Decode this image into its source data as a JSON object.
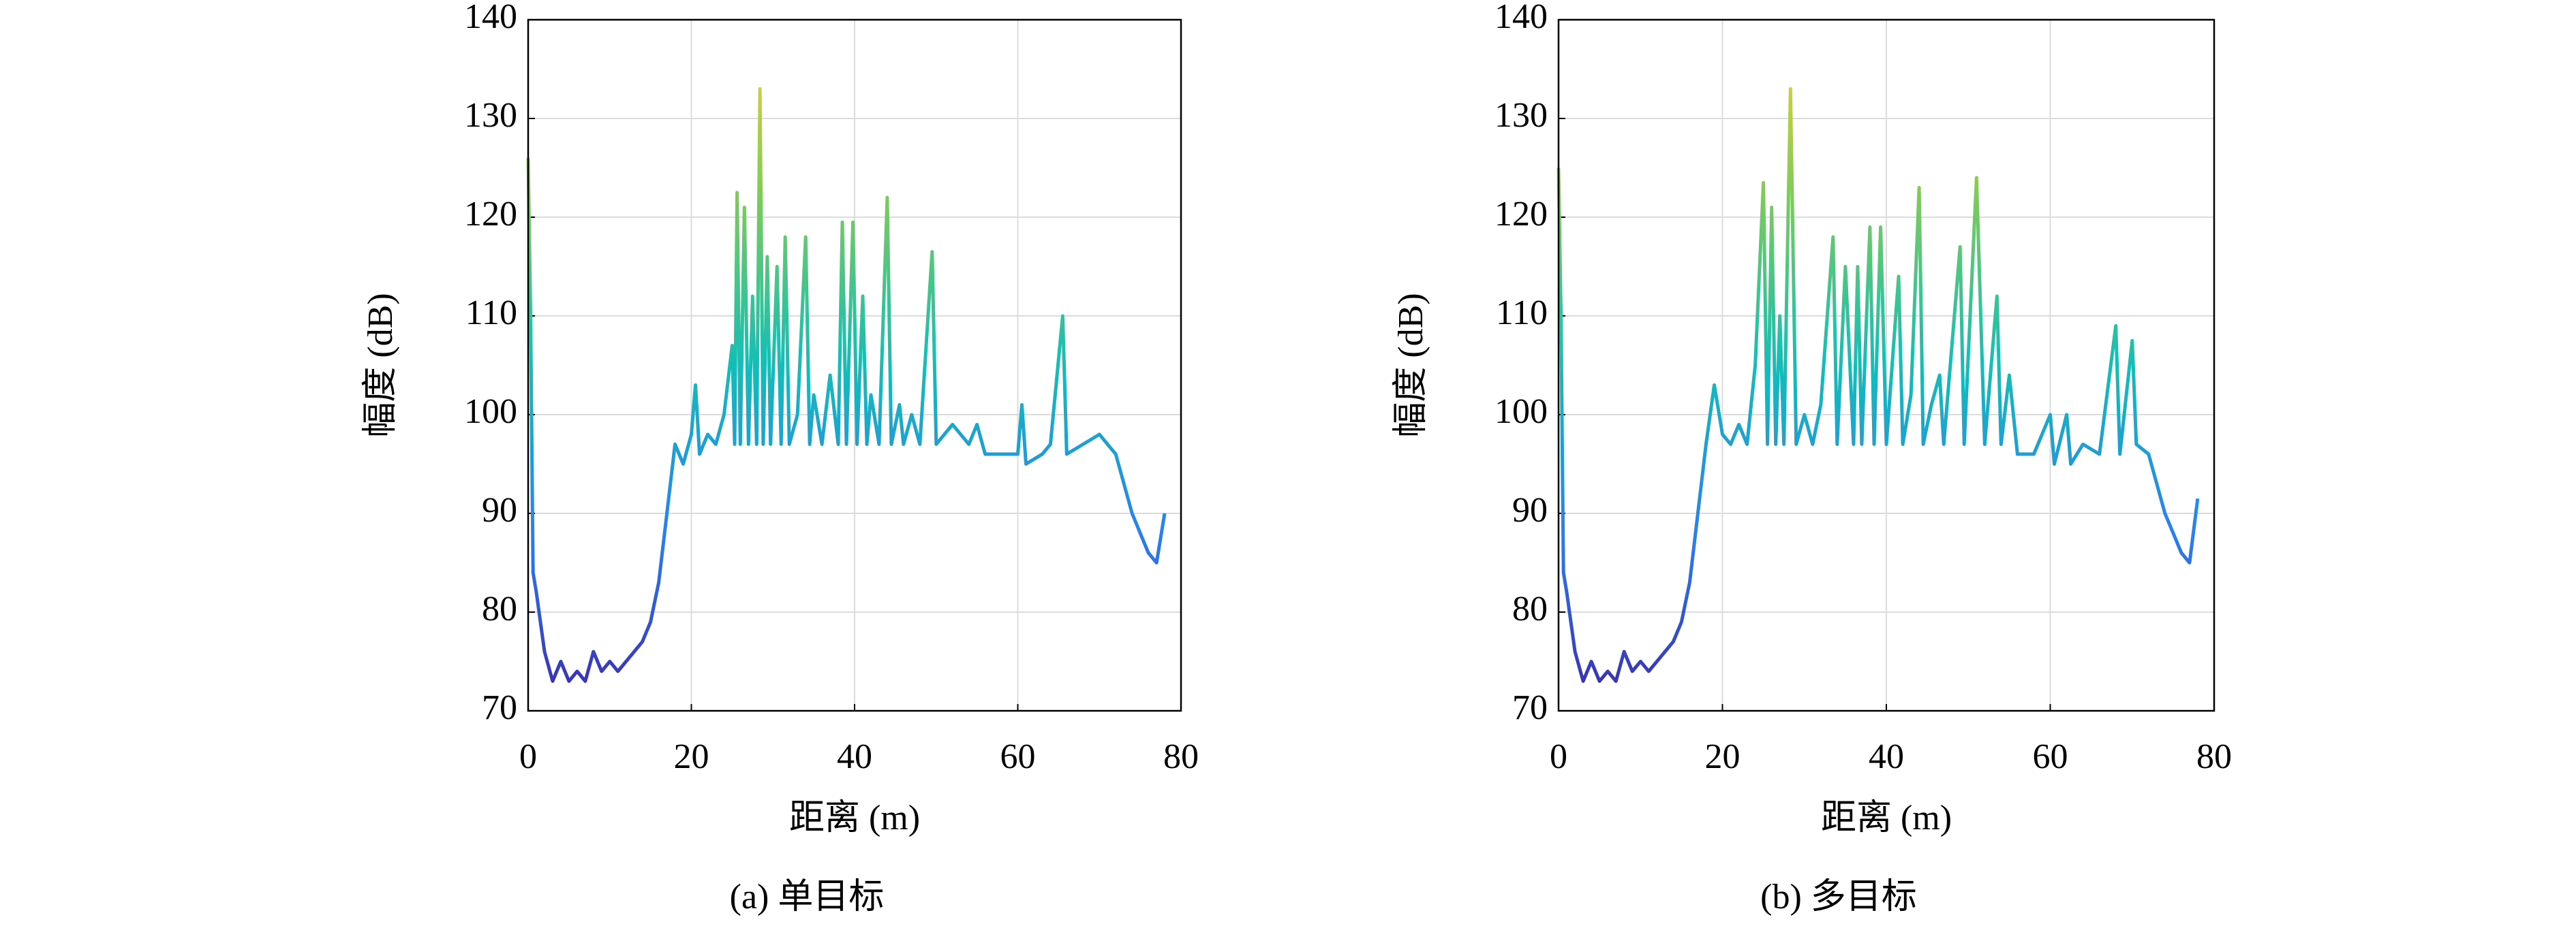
{
  "chart_data": [
    {
      "type": "line",
      "caption": "(a) 单目标",
      "xlabel": "距离 (m)",
      "ylabel": "幅度 (dB)",
      "xlim": [
        0,
        80
      ],
      "xticks": [
        0,
        20,
        40,
        60,
        80
      ],
      "ylim": [
        70,
        140
      ],
      "yticks": [
        70,
        80,
        90,
        100,
        110,
        120,
        130,
        140
      ],
      "grid": true,
      "colors": [
        "#3e26a8",
        "#2a7ef0",
        "#13beb8",
        "#80cb58",
        "#f9d32e"
      ],
      "x": [
        0,
        0.3,
        0.6,
        1,
        2,
        3,
        4,
        5,
        6,
        7,
        8,
        9,
        10,
        11,
        12,
        13,
        14,
        15,
        16,
        17,
        18,
        19,
        20,
        20.5,
        21,
        22,
        23,
        24,
        25,
        25.3,
        25.6,
        26,
        26.5,
        27,
        27.5,
        28,
        28.4,
        28.8,
        29.3,
        29.7,
        30.5,
        31,
        31.5,
        32,
        33,
        34,
        34.5,
        35,
        36,
        37,
        38,
        38.5,
        39,
        39.8,
        40.3,
        41,
        41.5,
        42,
        43,
        44,
        44.5,
        45.5,
        46,
        47,
        48,
        49.5,
        50,
        52,
        54,
        55,
        56,
        58,
        60,
        60.5,
        61,
        63,
        64,
        65.5,
        66,
        68,
        70,
        71,
        72,
        73,
        74,
        75,
        76,
        77,
        78
      ],
      "values": [
        126,
        110,
        84,
        82,
        76,
        73,
        75,
        73,
        74,
        73,
        76,
        74,
        75,
        74,
        75,
        76,
        77,
        79,
        83,
        90,
        97,
        95,
        98,
        103,
        96,
        98,
        97,
        100,
        107,
        97,
        122.5,
        97,
        121,
        97,
        112,
        97,
        133,
        97,
        116,
        97,
        115,
        97,
        118,
        97,
        100,
        118,
        97,
        102,
        97,
        104,
        97,
        119.5,
        97,
        119.5,
        97,
        112,
        97,
        102,
        97,
        122,
        97,
        101,
        97,
        100,
        97,
        116.5,
        97,
        99,
        97,
        99,
        96,
        96,
        96,
        101,
        95,
        96,
        97,
        110,
        96,
        97,
        98,
        97,
        96,
        93,
        90,
        88,
        86,
        85,
        90
      ]
    },
    {
      "type": "line",
      "caption": "(b) 多目标",
      "xlabel": "距离 (m)",
      "ylabel": "幅度 (dB)",
      "xlim": [
        0,
        80
      ],
      "xticks": [
        0,
        20,
        40,
        60,
        80
      ],
      "ylim": [
        70,
        140
      ],
      "yticks": [
        70,
        80,
        90,
        100,
        110,
        120,
        130,
        140
      ],
      "grid": true,
      "colors": [
        "#3e26a8",
        "#2a7ef0",
        "#13beb8",
        "#80cb58",
        "#f9d32e"
      ],
      "x": [
        0,
        0.3,
        0.6,
        1,
        2,
        3,
        4,
        5,
        6,
        7,
        8,
        9,
        10,
        11,
        12,
        13,
        14,
        15,
        16,
        17,
        18,
        19,
        20,
        21,
        22,
        23,
        24,
        25,
        25.5,
        26,
        26.5,
        27,
        27.5,
        28.3,
        29,
        30,
        31,
        32,
        33.5,
        34,
        35,
        36,
        36.5,
        37,
        38,
        38.5,
        39.3,
        40,
        41.5,
        42,
        43,
        44,
        44.5,
        45.5,
        46.5,
        47,
        49,
        49.5,
        51,
        52,
        53.5,
        54,
        55,
        56,
        58,
        60,
        60.5,
        62,
        62.5,
        64,
        66,
        68,
        68.5,
        70,
        70.5,
        72,
        73,
        74,
        75,
        76,
        77,
        78
      ],
      "values": [
        125,
        110,
        84,
        82,
        76,
        73,
        75,
        73,
        74,
        73,
        76,
        74,
        75,
        74,
        75,
        76,
        77,
        79,
        83,
        90,
        97,
        103,
        98,
        97,
        99,
        97,
        105,
        123.5,
        97,
        121,
        97,
        110,
        97,
        133,
        97,
        100,
        97,
        101,
        118,
        97,
        115,
        97,
        115,
        97,
        119,
        97,
        119,
        97,
        114,
        97,
        102,
        123,
        97,
        101,
        104,
        97,
        117,
        97,
        124,
        97,
        112,
        97,
        104,
        96,
        96,
        100,
        95,
        100,
        95,
        97,
        96,
        109,
        96,
        107.5,
        97,
        96,
        93,
        90,
        88,
        86,
        85,
        91.5
      ]
    }
  ]
}
